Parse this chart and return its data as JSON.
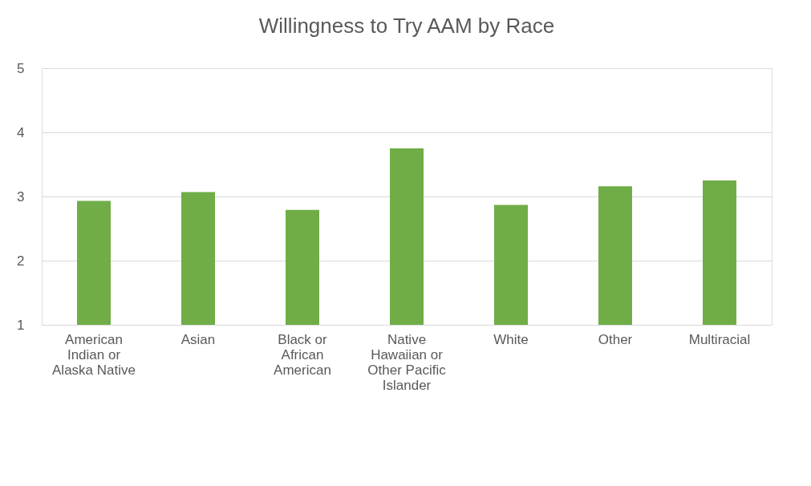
{
  "chart_data": {
    "type": "bar",
    "title": "Willingness to Try AAM by Race",
    "categories": [
      "American Indian or Alaska Native",
      "Asian",
      "Black or African American",
      "Native Hawaiian or Other Pacific Islander",
      "White",
      "Other",
      "Multiracial"
    ],
    "values": [
      2.93,
      3.07,
      2.79,
      3.75,
      2.87,
      3.16,
      3.25
    ],
    "color": "#70ad47",
    "ylim": [
      1,
      5
    ],
    "yticks": [
      1,
      2,
      3,
      4,
      5
    ],
    "grid": "y"
  }
}
